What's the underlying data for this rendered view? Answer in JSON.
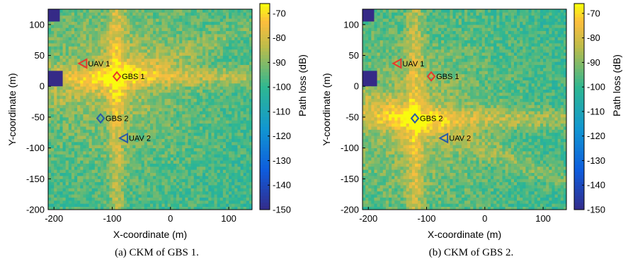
{
  "panels": [
    {
      "caption": "(a) CKM of GBS 1.",
      "chart_data": {
        "type": "heatmap",
        "title": "",
        "xlabel": "X-coordinate (m)",
        "ylabel": "Y-coordinate (m)",
        "colorbar_label": "Path loss (dB)",
        "xlim": [
          -210,
          140
        ],
        "ylim": [
          -200,
          125
        ],
        "clim": [
          -150,
          -66
        ],
        "x_ticks": [
          -200,
          -100,
          0,
          100
        ],
        "y_ticks": [
          -200,
          -150,
          -100,
          -50,
          0,
          50,
          100
        ],
        "colorbar_ticks": [
          -70,
          -80,
          -90,
          -100,
          -110,
          -120,
          -130,
          -140,
          -150
        ],
        "colormap": "parula",
        "blocked_regions": [
          {
            "x": [
              -210,
              -190
            ],
            "y": [
              105,
              125
            ],
            "value": -150
          },
          {
            "x": [
              -210,
              -185
            ],
            "y": [
              0,
              25
            ],
            "value": -150
          }
        ],
        "markers": [
          {
            "name": "UAV 1",
            "shape": "triangle-left",
            "color": "#e8382c",
            "x": -150,
            "y": 37
          },
          {
            "name": "GBS 1",
            "shape": "diamond",
            "color": "#e8382c",
            "x": -92,
            "y": 16
          },
          {
            "name": "GBS 2",
            "shape": "diamond",
            "color": "#2a5aa8",
            "x": -120,
            "y": -52
          },
          {
            "name": "UAV 2",
            "shape": "triangle-left",
            "color": "#2a5aa8",
            "x": -80,
            "y": -84
          }
        ]
      }
    },
    {
      "caption": "(b) CKM of GBS 2.",
      "chart_data": {
        "type": "heatmap",
        "title": "",
        "xlabel": "X-coordinate (m)",
        "ylabel": "Y-coordinate (m)",
        "colorbar_label": "Path loss (dB)",
        "xlim": [
          -210,
          140
        ],
        "ylim": [
          -200,
          125
        ],
        "clim": [
          -150,
          -66
        ],
        "x_ticks": [
          -200,
          -100,
          0,
          100
        ],
        "y_ticks": [
          -200,
          -150,
          -100,
          -50,
          0,
          50,
          100
        ],
        "colorbar_ticks": [
          -70,
          -80,
          -90,
          -100,
          -110,
          -120,
          -130,
          -140,
          -150
        ],
        "colormap": "parula",
        "blocked_regions": [
          {
            "x": [
              -210,
              -190
            ],
            "y": [
              105,
              125
            ],
            "value": -150
          },
          {
            "x": [
              -210,
              -185
            ],
            "y": [
              0,
              25
            ],
            "value": -150
          }
        ],
        "markers": [
          {
            "name": "UAV 1",
            "shape": "triangle-left",
            "color": "#e8382c",
            "x": -150,
            "y": 37
          },
          {
            "name": "GBS 1",
            "shape": "diamond",
            "color": "#e8382c",
            "x": -92,
            "y": 16
          },
          {
            "name": "GBS 2",
            "shape": "diamond",
            "color": "#2a5aa8",
            "x": -120,
            "y": -52
          },
          {
            "name": "UAV 2",
            "shape": "triangle-left",
            "color": "#2a5aa8",
            "x": -70,
            "y": -84
          }
        ]
      }
    }
  ]
}
